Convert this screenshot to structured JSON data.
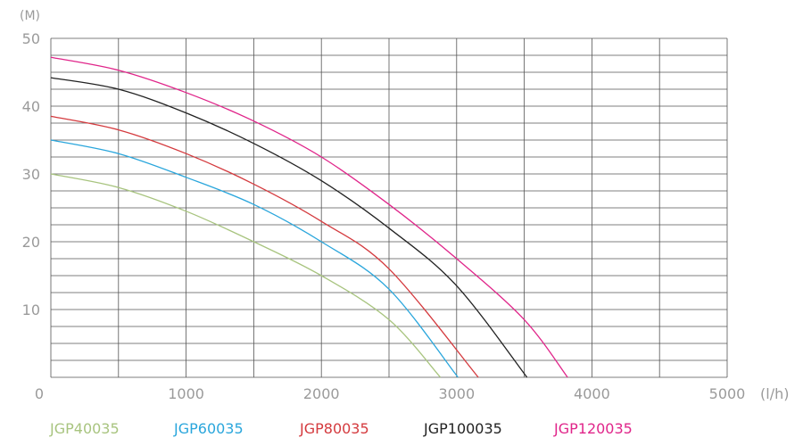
{
  "chart_data": {
    "type": "line",
    "ylabel": "(M)",
    "xlabel": "(l/h)",
    "xlim": [
      0,
      5000
    ],
    "ylim": [
      0,
      50
    ],
    "x_minor_step": 500,
    "y_minor_step": 2.5,
    "x_ticks": [
      0,
      1000,
      2000,
      3000,
      4000,
      5000
    ],
    "x_tick_labels": [
      "0",
      "1000",
      "2000",
      "3000",
      "4000",
      "5000"
    ],
    "y_ticks": [
      10,
      20,
      30,
      40,
      50
    ],
    "y_tick_labels": [
      "10",
      "20",
      "30",
      "40",
      "50"
    ],
    "grid": true,
    "legend_position": "bottom",
    "series": [
      {
        "name": "JGP40035",
        "color": "#a8c47f",
        "x": [
          0,
          500,
          1000,
          1500,
          2000,
          2500,
          2880
        ],
        "y": [
          30,
          28,
          24.5,
          20,
          15,
          8.5,
          0
        ]
      },
      {
        "name": "JGP60035",
        "color": "#2aa6dc",
        "x": [
          0,
          500,
          1000,
          1500,
          2000,
          2500,
          3010
        ],
        "y": [
          35,
          33,
          29.5,
          25.5,
          20,
          13,
          0
        ]
      },
      {
        "name": "JGP80035",
        "color": "#d43a3e",
        "x": [
          0,
          500,
          1000,
          1500,
          2000,
          2500,
          3160
        ],
        "y": [
          38.5,
          36.5,
          33,
          28.5,
          23,
          16,
          0
        ]
      },
      {
        "name": "JGP100035",
        "color": "#222222",
        "x": [
          0,
          500,
          1000,
          1500,
          2000,
          2500,
          3000,
          3520
        ],
        "y": [
          44.2,
          42.5,
          39,
          34.5,
          29,
          22,
          13.5,
          0
        ]
      },
      {
        "name": "JGP120035",
        "color": "#e0258a",
        "x": [
          0,
          500,
          1000,
          1500,
          2000,
          2500,
          3000,
          3500,
          3820
        ],
        "y": [
          47.2,
          45.3,
          42,
          37.8,
          32.5,
          25.5,
          17.5,
          8.5,
          0
        ]
      }
    ]
  }
}
